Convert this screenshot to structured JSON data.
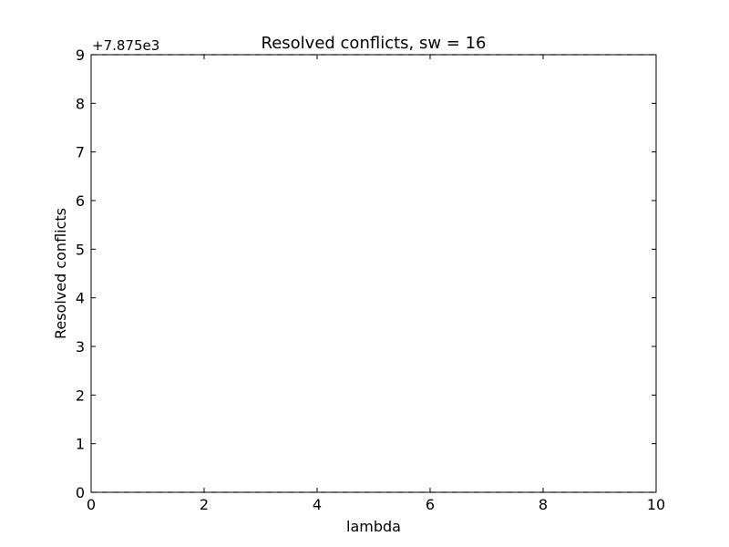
{
  "chart_data": {
    "type": "line",
    "title": "Resolved conflicts, sw = 16",
    "xlabel": "lambda",
    "ylabel": "Resolved conflicts",
    "offset_label": "+7.875e3",
    "xlim": [
      0,
      10
    ],
    "ylim": [
      0,
      9
    ],
    "x_ticks": [
      "0",
      "2",
      "4",
      "6",
      "8",
      "10"
    ],
    "y_ticks": [
      "0",
      "1",
      "2",
      "3",
      "4",
      "5",
      "6",
      "7",
      "8",
      "9"
    ],
    "grid": false,
    "series": [
      {
        "color": "#ff0000",
        "style": "dashed",
        "x": [
          0,
          10
        ],
        "y": [
          0,
          0
        ]
      },
      {
        "color": "#ff0000",
        "style": "dashed",
        "x": [
          0,
          10
        ],
        "y": [
          9,
          9
        ]
      }
    ]
  }
}
